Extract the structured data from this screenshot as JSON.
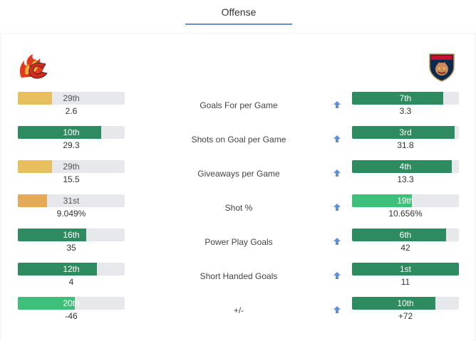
{
  "tabs": {
    "active_label": "Offense"
  },
  "teams": {
    "left": {
      "logo_icon": "calgary-flames-logo-icon"
    },
    "right": {
      "logo_icon": "florida-panthers-logo-icon"
    }
  },
  "colors": {
    "gold": "#e8bf5e",
    "orange": "#e6a95a",
    "dark_green": "#2e8b5f",
    "light_green": "#3fbf7a",
    "track": "#e6e8eb",
    "arrow_blue": "#5b8de0"
  },
  "stats": [
    {
      "label": "Goals For per Game",
      "left": {
        "rank": "29th",
        "value": "2.6",
        "fill_pct": 32,
        "color": "#e8bf5e",
        "text": "light"
      },
      "right": {
        "rank": "7th",
        "value": "3.3",
        "fill_pct": 85,
        "color": "#2e8b5f",
        "text": "dark"
      }
    },
    {
      "label": "Shots on Goal per Game",
      "left": {
        "rank": "10th",
        "value": "29.3",
        "fill_pct": 78,
        "color": "#2e8b5f",
        "text": "dark"
      },
      "right": {
        "rank": "3rd",
        "value": "31.8",
        "fill_pct": 96,
        "color": "#2e8b5f",
        "text": "dark"
      }
    },
    {
      "label": "Giveaways per Game",
      "left": {
        "rank": "29th",
        "value": "15.5",
        "fill_pct": 32,
        "color": "#e8bf5e",
        "text": "light"
      },
      "right": {
        "rank": "4th",
        "value": "13.3",
        "fill_pct": 93,
        "color": "#2e8b5f",
        "text": "dark"
      }
    },
    {
      "label": "Shot %",
      "left": {
        "rank": "31st",
        "value": "9.049%",
        "fill_pct": 27,
        "color": "#e6a95a",
        "text": "light"
      },
      "right": {
        "rank": "19th",
        "value": "10.656%",
        "fill_pct": 56,
        "color": "#3fbf7a",
        "text": "dark"
      }
    },
    {
      "label": "Power Play Goals",
      "left": {
        "rank": "16th",
        "value": "35",
        "fill_pct": 64,
        "color": "#2e8b5f",
        "text": "dark"
      },
      "right": {
        "rank": "6th",
        "value": "42",
        "fill_pct": 88,
        "color": "#2e8b5f",
        "text": "dark"
      }
    },
    {
      "label": "Short Handed Goals",
      "left": {
        "rank": "12th",
        "value": "4",
        "fill_pct": 74,
        "color": "#2e8b5f",
        "text": "dark"
      },
      "right": {
        "rank": "1st",
        "value": "11",
        "fill_pct": 100,
        "color": "#2e8b5f",
        "text": "dark"
      }
    },
    {
      "label": "+/-",
      "left": {
        "rank": "20th",
        "value": "-46",
        "fill_pct": 53,
        "color": "#3fbf7a",
        "text": "dark"
      },
      "right": {
        "rank": "10th",
        "value": "+72",
        "fill_pct": 78,
        "color": "#2e8b5f",
        "text": "dark"
      }
    }
  ]
}
